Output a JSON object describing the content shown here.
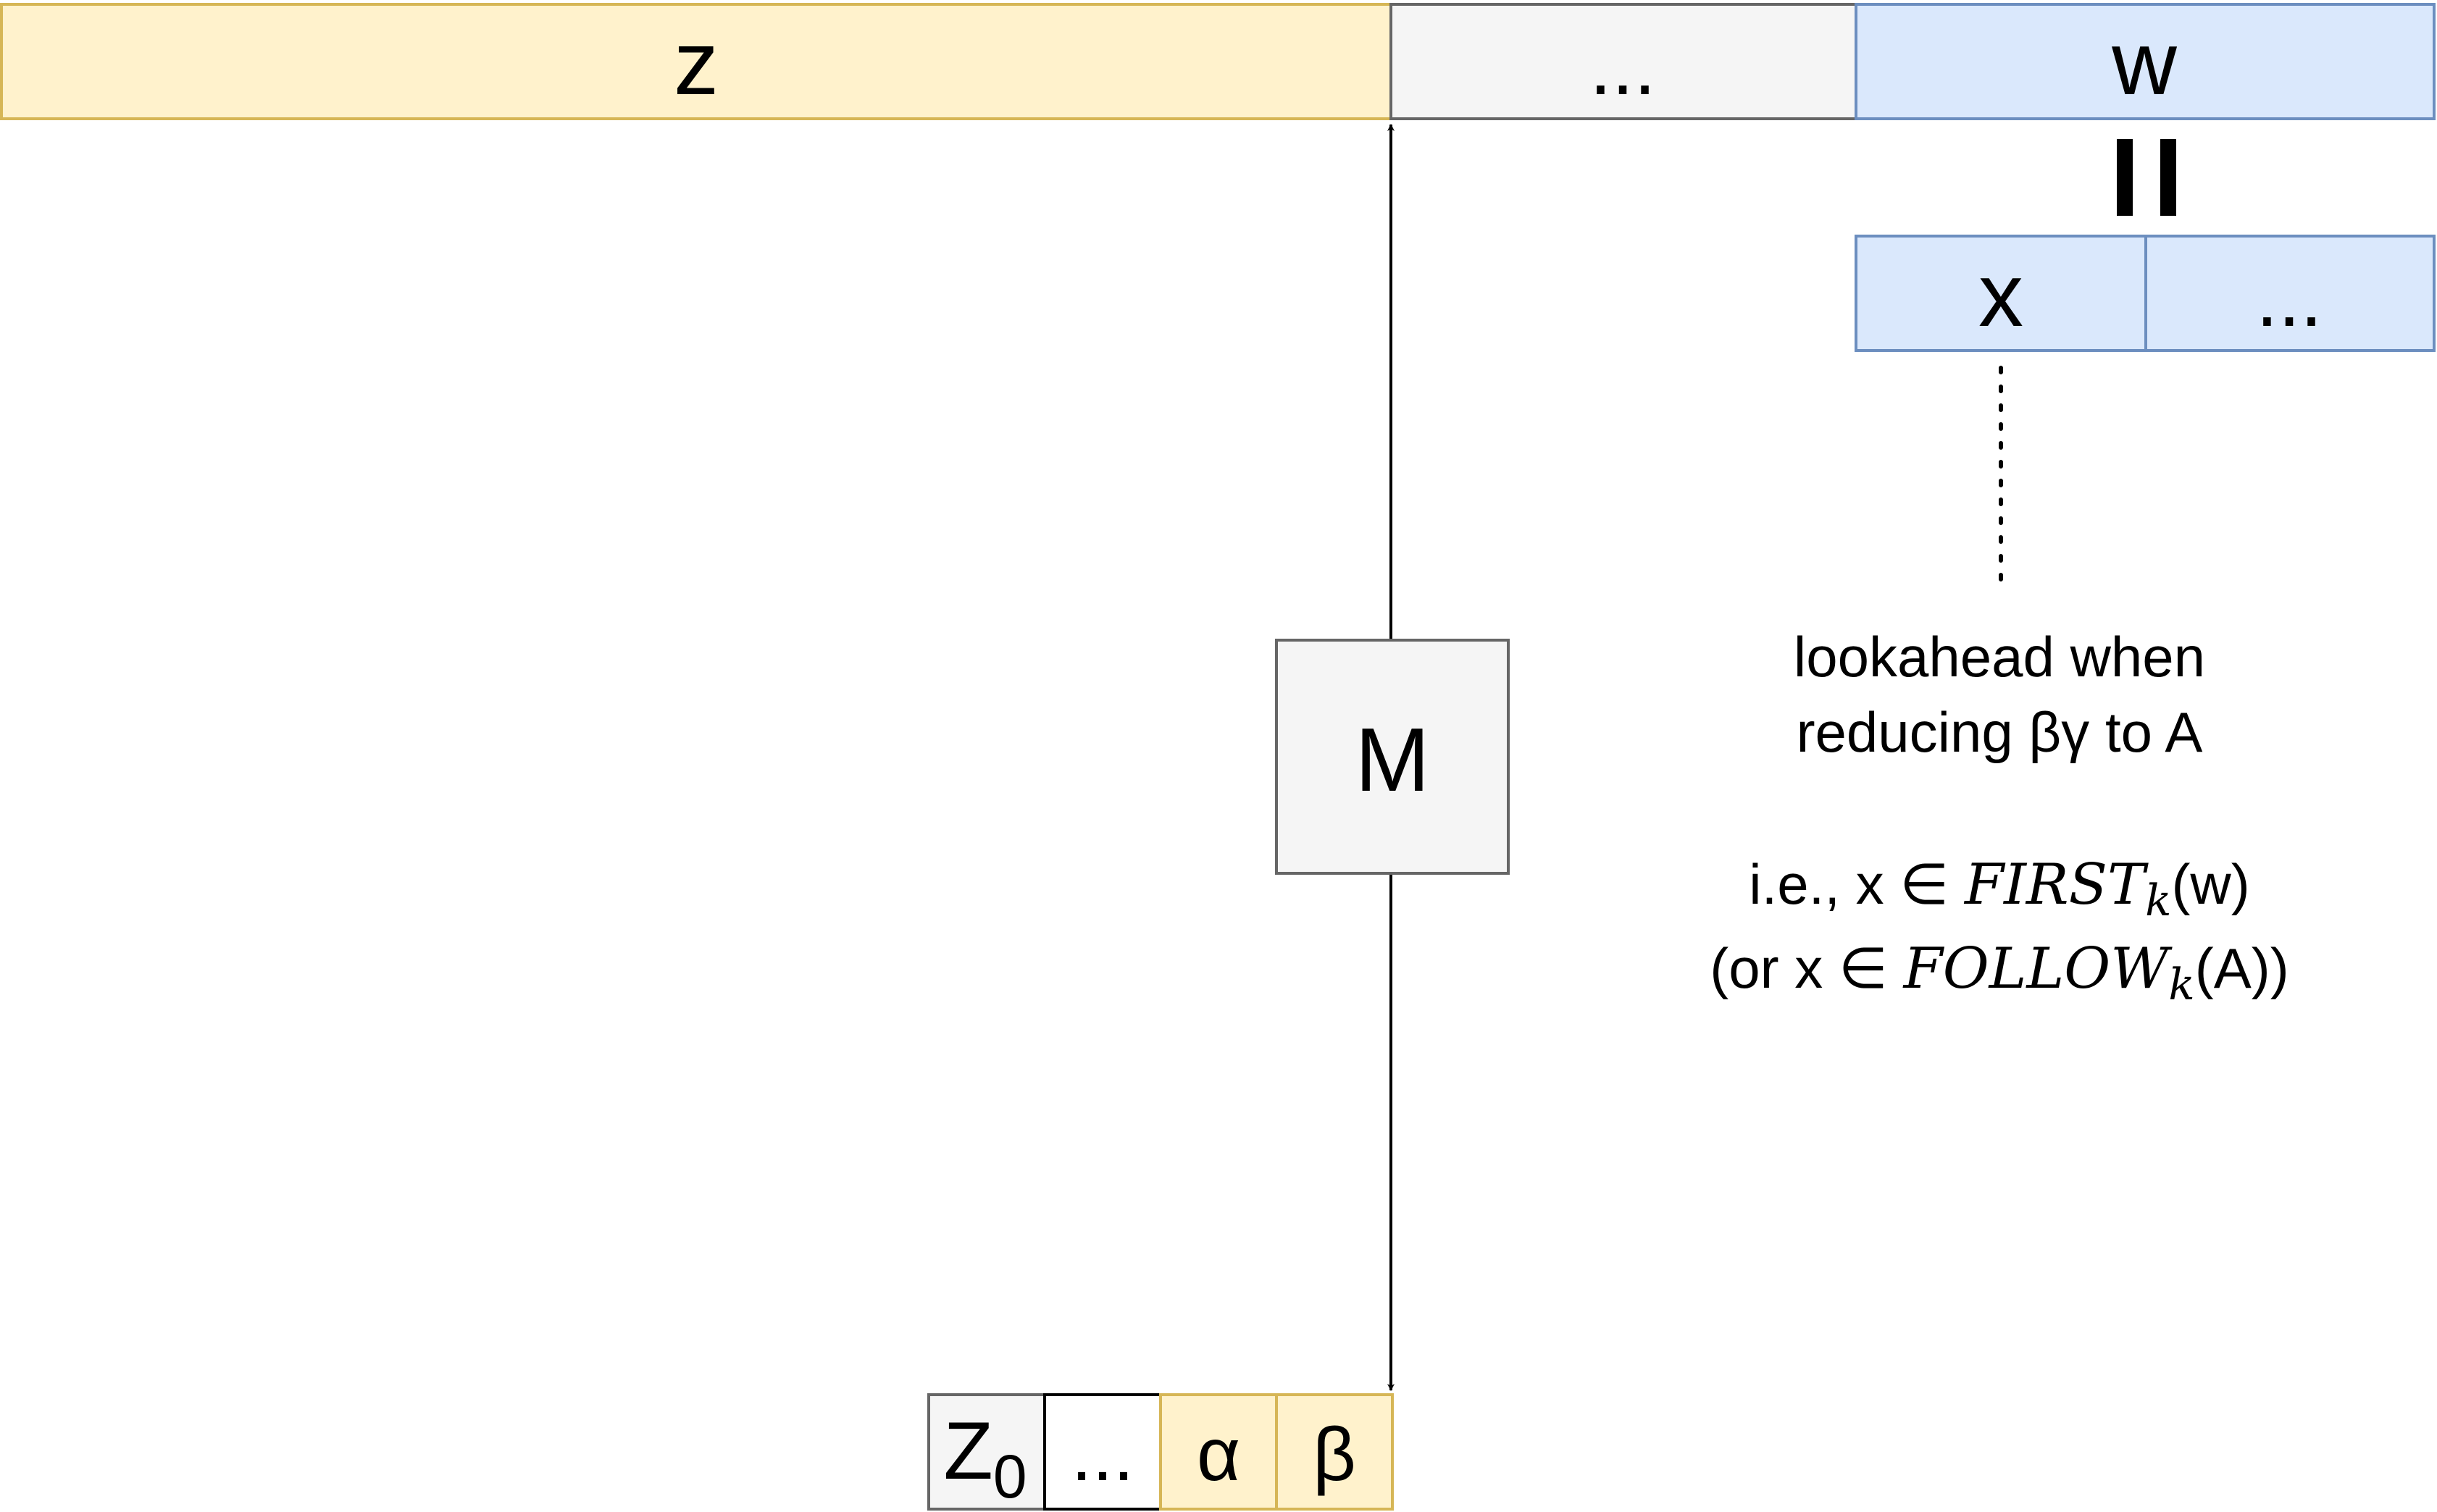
{
  "input_tape": {
    "z": "z",
    "middle": "...",
    "w": "w"
  },
  "equals_sign": "=",
  "lookahead_tape": {
    "x": "x",
    "rest": "..."
  },
  "control": {
    "label": "M"
  },
  "stack": {
    "z0_base": "Z",
    "z0_sub": "0",
    "dots": "...",
    "alpha": "α",
    "beta": "β"
  },
  "annotation": {
    "line1": "lookahead when",
    "line2": "reducing βγ to A",
    "line3_prefix": "i.e., x ∈ ",
    "line3_func": "FIRST",
    "line3_sub": "k",
    "line3_suffix": "(w)",
    "line4_prefix": "(or x ∈ ",
    "line4_func": "FOLLOW",
    "line4_sub": "k",
    "line4_suffix": "(A))"
  },
  "colors": {
    "yellow_fill": "#fff2cc",
    "yellow_stroke": "#d6b656",
    "gray_fill": "#f5f5f5",
    "gray_stroke": "#666666",
    "blue_fill": "#dae8fc",
    "blue_stroke": "#6c8ebf",
    "white_fill": "#ffffff",
    "black_stroke": "#000000"
  }
}
